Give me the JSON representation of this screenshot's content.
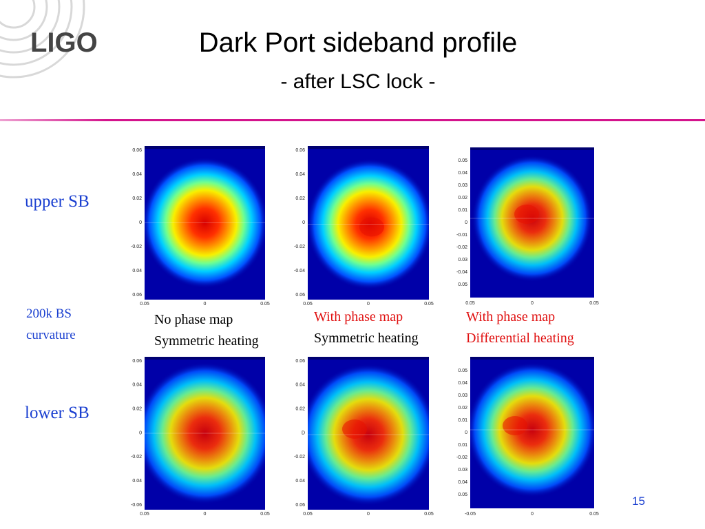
{
  "logo": "LIGO",
  "header": {
    "title": "Dark Port sideband profile",
    "subtitle": "- after LSC lock -"
  },
  "row_labels": {
    "upper": "upper SB",
    "middle_line1": "200k BS",
    "middle_line2": "curvature",
    "lower": "lower SB"
  },
  "captions": [
    {
      "line1": "No phase map",
      "line2": "Symmetric heating"
    },
    {
      "line1": "With phase map",
      "line2": "Symmetric heating"
    },
    {
      "line1": "With phase map",
      "line2": "Differential heating"
    }
  ],
  "panels": [
    {
      "yticks": [
        "0.06",
        "0.04",
        "0.02",
        "0",
        "-0.02",
        "0.04",
        "0.06"
      ],
      "xticks": [
        "0.05",
        "0",
        "0.05"
      ]
    },
    {
      "yticks": [
        "0.06",
        "0.04",
        "0.02",
        "0",
        "-0.02",
        "-0.04",
        "0.06"
      ],
      "xticks": [
        "0.05",
        "0",
        "0.05"
      ]
    },
    {
      "yticks": [
        "0.05",
        "0.04",
        "0.03",
        "0.02",
        "0.01",
        "0",
        "-0.01",
        "-0.02",
        "0.03",
        "-0.04",
        "0.05"
      ],
      "xticks": [
        "0.05",
        "0",
        "0.05"
      ]
    },
    {
      "yticks": [
        "0.06",
        "0.04",
        "0.02",
        "0",
        "-0.02",
        "0.04",
        "-0.06"
      ],
      "xticks": [
        "0.05",
        "0",
        "0.05"
      ]
    },
    {
      "yticks": [
        "0.06",
        "0.04",
        "0.02",
        "D",
        "-0.02",
        "0.04",
        "0.06"
      ],
      "xticks": [
        "0.05",
        "0",
        "0.05"
      ]
    },
    {
      "yticks": [
        "0.05",
        "0.04",
        "0.03",
        "0.02",
        "0.01",
        "0",
        "0.01",
        "-0.02",
        "0.03",
        "0.04",
        "0.05"
      ],
      "xticks": [
        "-0.05",
        "0",
        "0.05"
      ]
    }
  ],
  "page_number": "15"
}
